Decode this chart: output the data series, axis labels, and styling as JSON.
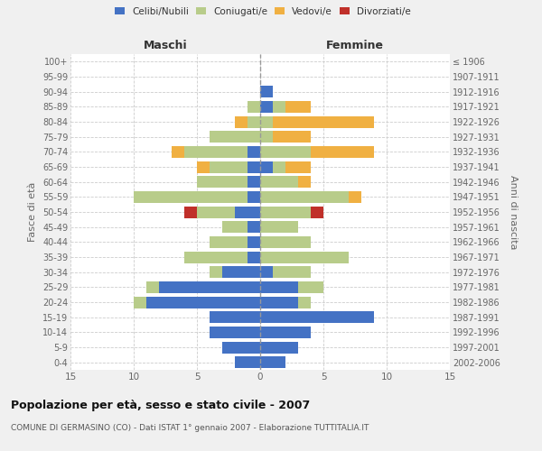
{
  "age_groups": [
    "0-4",
    "5-9",
    "10-14",
    "15-19",
    "20-24",
    "25-29",
    "30-34",
    "35-39",
    "40-44",
    "45-49",
    "50-54",
    "55-59",
    "60-64",
    "65-69",
    "70-74",
    "75-79",
    "80-84",
    "85-89",
    "90-94",
    "95-99",
    "100+"
  ],
  "birth_years": [
    "2002-2006",
    "1997-2001",
    "1992-1996",
    "1987-1991",
    "1982-1986",
    "1977-1981",
    "1972-1976",
    "1967-1971",
    "1962-1966",
    "1957-1961",
    "1952-1956",
    "1947-1951",
    "1942-1946",
    "1937-1941",
    "1932-1936",
    "1927-1931",
    "1922-1926",
    "1917-1921",
    "1912-1916",
    "1907-1911",
    "≤ 1906"
  ],
  "maschi": {
    "celibi": [
      2,
      3,
      4,
      4,
      9,
      8,
      3,
      1,
      1,
      1,
      2,
      1,
      1,
      1,
      1,
      0,
      0,
      0,
      0,
      0,
      0
    ],
    "coniugati": [
      0,
      0,
      0,
      0,
      1,
      1,
      1,
      5,
      3,
      2,
      3,
      9,
      4,
      3,
      5,
      4,
      1,
      1,
      0,
      0,
      0
    ],
    "vedovi": [
      0,
      0,
      0,
      0,
      0,
      0,
      0,
      0,
      0,
      0,
      0,
      0,
      0,
      1,
      1,
      0,
      1,
      0,
      0,
      0,
      0
    ],
    "divorziati": [
      0,
      0,
      0,
      0,
      0,
      0,
      0,
      0,
      0,
      0,
      1,
      0,
      0,
      0,
      0,
      0,
      0,
      0,
      0,
      0,
      0
    ]
  },
  "femmine": {
    "nubili": [
      2,
      3,
      4,
      9,
      3,
      3,
      1,
      0,
      0,
      0,
      0,
      0,
      0,
      1,
      0,
      0,
      0,
      1,
      1,
      0,
      0
    ],
    "coniugate": [
      0,
      0,
      0,
      0,
      1,
      2,
      3,
      7,
      4,
      3,
      4,
      7,
      3,
      1,
      4,
      1,
      1,
      1,
      0,
      0,
      0
    ],
    "vedove": [
      0,
      0,
      0,
      0,
      0,
      0,
      0,
      0,
      0,
      0,
      0,
      1,
      1,
      2,
      5,
      3,
      8,
      2,
      0,
      0,
      0
    ],
    "divorziate": [
      0,
      0,
      0,
      0,
      0,
      0,
      0,
      0,
      0,
      0,
      1,
      0,
      0,
      0,
      0,
      0,
      0,
      0,
      0,
      0,
      0
    ]
  },
  "colors": {
    "celibi_nubili": "#4472c4",
    "coniugati_e": "#b8cc8a",
    "vedovi_e": "#f0b042",
    "divorziati_e": "#c0302a"
  },
  "title": "Popolazione per età, sesso e stato civile - 2007",
  "subtitle": "COMUNE DI GERMASINO (CO) - Dati ISTAT 1° gennaio 2007 - Elaborazione TUTTITALIA.IT",
  "xlabel_left": "Maschi",
  "xlabel_right": "Femmine",
  "ylabel_left": "Fasce di età",
  "ylabel_right": "Anni di nascita",
  "xlim": 15,
  "bg_color": "#f0f0f0",
  "plot_bg_color": "#ffffff",
  "grid_color": "#cccccc"
}
